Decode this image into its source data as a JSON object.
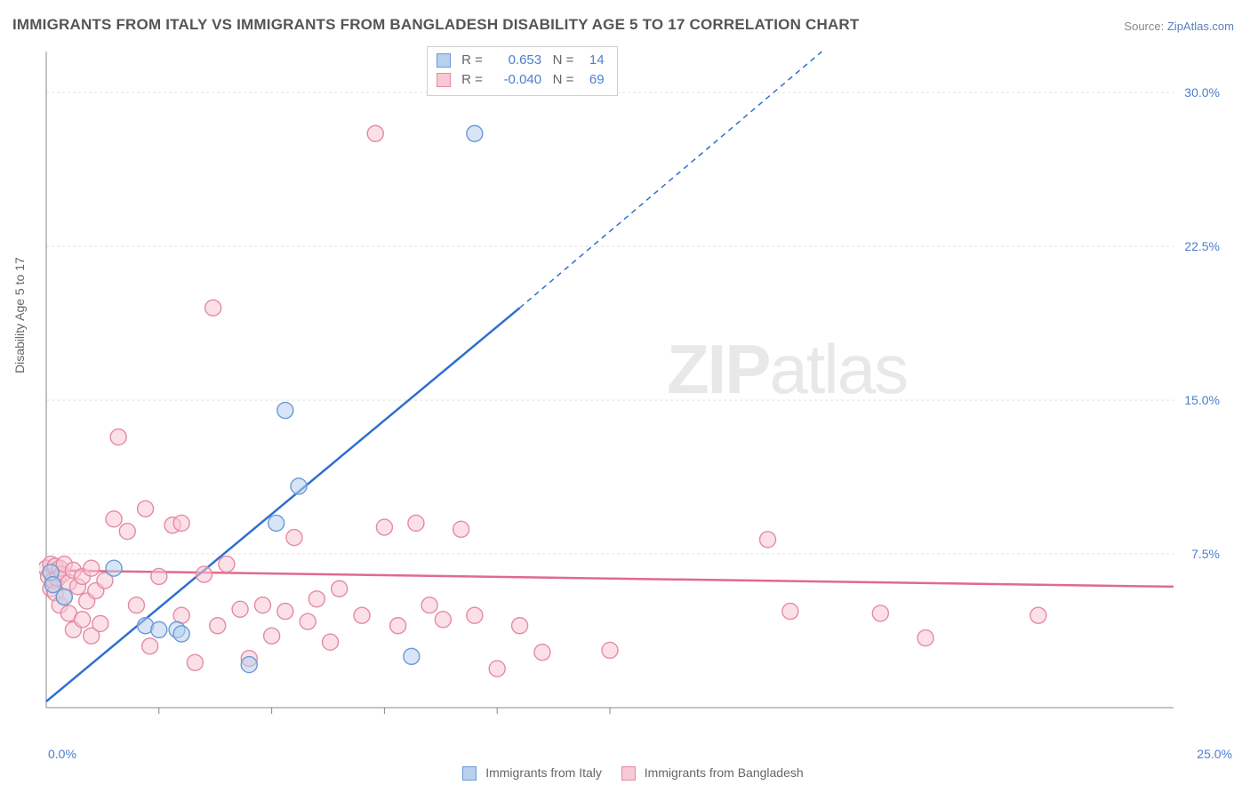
{
  "title": "IMMIGRANTS FROM ITALY VS IMMIGRANTS FROM BANGLADESH DISABILITY AGE 5 TO 17 CORRELATION CHART",
  "source_label": "Source:",
  "source_name": "ZipAtlas.com",
  "ylabel": "Disability Age 5 to 17",
  "watermark_a": "ZIP",
  "watermark_b": "atlas",
  "chart": {
    "type": "scatter-with-regression",
    "background_color": "#ffffff",
    "grid_color": "#e2e2e2",
    "axis_color": "#888888",
    "xlim": [
      0,
      25
    ],
    "ylim": [
      0,
      32
    ],
    "x_ticks_minor": [
      2.5,
      5,
      7.5,
      10,
      12.5
    ],
    "y_gridlines": [
      7.5,
      15,
      22.5,
      30
    ],
    "y_tick_labels": [
      "7.5%",
      "15.0%",
      "22.5%",
      "30.0%"
    ],
    "x_origin_label": "0.0%",
    "x_max_label": "25.0%",
    "axis_label_color": "#4a7fd0",
    "marker_radius": 9,
    "marker_stroke_width": 1.4,
    "line_width_solid": 2.5,
    "line_width_dash": 1.5,
    "series": [
      {
        "name": "Immigrants from Italy",
        "color_fill": "#b6d0ee",
        "color_stroke": "#6a9ad6",
        "line_color": "#2f6fd0",
        "R": "0.653",
        "N": "14",
        "regression": {
          "x1": 0,
          "y1": 0.3,
          "x2solid": 10.5,
          "y2solid": 19.5,
          "x2": 17.2,
          "y2": 32
        },
        "points": [
          [
            0.1,
            6.6
          ],
          [
            0.15,
            6.0
          ],
          [
            0.4,
            5.4
          ],
          [
            1.5,
            6.8
          ],
          [
            2.2,
            4.0
          ],
          [
            2.5,
            3.8
          ],
          [
            2.9,
            3.8
          ],
          [
            3.0,
            3.6
          ],
          [
            4.5,
            2.1
          ],
          [
            5.1,
            9.0
          ],
          [
            5.3,
            14.5
          ],
          [
            5.6,
            10.8
          ],
          [
            8.1,
            2.5
          ],
          [
            9.5,
            28.0
          ]
        ]
      },
      {
        "name": "Immigrants from Bangladesh",
        "color_fill": "#f7c9d4",
        "color_stroke": "#e48aa2",
        "line_color": "#e06b8c",
        "R": "-0.040",
        "N": "69",
        "regression": {
          "x1": 0,
          "y1": 6.7,
          "x2solid": 25,
          "y2solid": 5.9,
          "x2": 25,
          "y2": 5.9
        },
        "points": [
          [
            0.0,
            6.8
          ],
          [
            0.05,
            6.4
          ],
          [
            0.1,
            7.0
          ],
          [
            0.1,
            5.8
          ],
          [
            0.15,
            6.2
          ],
          [
            0.2,
            6.9
          ],
          [
            0.2,
            5.6
          ],
          [
            0.25,
            6.3
          ],
          [
            0.3,
            6.8
          ],
          [
            0.3,
            5.0
          ],
          [
            0.35,
            6.5
          ],
          [
            0.4,
            7.0
          ],
          [
            0.4,
            5.4
          ],
          [
            0.5,
            6.1
          ],
          [
            0.5,
            4.6
          ],
          [
            0.6,
            6.7
          ],
          [
            0.6,
            3.8
          ],
          [
            0.7,
            5.9
          ],
          [
            0.8,
            6.4
          ],
          [
            0.8,
            4.3
          ],
          [
            0.9,
            5.2
          ],
          [
            1.0,
            6.8
          ],
          [
            1.0,
            3.5
          ],
          [
            1.1,
            5.7
          ],
          [
            1.2,
            4.1
          ],
          [
            1.3,
            6.2
          ],
          [
            1.5,
            9.2
          ],
          [
            1.6,
            13.2
          ],
          [
            1.8,
            8.6
          ],
          [
            2.0,
            5.0
          ],
          [
            2.2,
            9.7
          ],
          [
            2.3,
            3.0
          ],
          [
            2.5,
            6.4
          ],
          [
            2.8,
            8.9
          ],
          [
            3.0,
            9.0
          ],
          [
            3.0,
            4.5
          ],
          [
            3.3,
            2.2
          ],
          [
            3.5,
            6.5
          ],
          [
            3.7,
            19.5
          ],
          [
            3.8,
            4.0
          ],
          [
            4.0,
            7.0
          ],
          [
            4.3,
            4.8
          ],
          [
            4.5,
            2.4
          ],
          [
            4.8,
            5.0
          ],
          [
            5.0,
            3.5
          ],
          [
            5.3,
            4.7
          ],
          [
            5.5,
            8.3
          ],
          [
            5.8,
            4.2
          ],
          [
            6.0,
            5.3
          ],
          [
            6.3,
            3.2
          ],
          [
            6.5,
            5.8
          ],
          [
            7.0,
            4.5
          ],
          [
            7.3,
            28.0
          ],
          [
            7.5,
            8.8
          ],
          [
            7.8,
            4.0
          ],
          [
            8.2,
            9.0
          ],
          [
            8.5,
            5.0
          ],
          [
            8.8,
            4.3
          ],
          [
            9.2,
            8.7
          ],
          [
            9.5,
            4.5
          ],
          [
            10.0,
            1.9
          ],
          [
            10.5,
            4.0
          ],
          [
            11.0,
            2.7
          ],
          [
            12.5,
            2.8
          ],
          [
            16.0,
            8.2
          ],
          [
            16.5,
            4.7
          ],
          [
            18.5,
            4.6
          ],
          [
            19.5,
            3.4
          ],
          [
            22.0,
            4.5
          ]
        ]
      }
    ]
  },
  "legend_bottom": [
    {
      "swatch_fill": "#b6d0ee",
      "swatch_stroke": "#6a9ad6",
      "label": "Immigrants from Italy"
    },
    {
      "swatch_fill": "#f7c9d4",
      "swatch_stroke": "#e48aa2",
      "label": "Immigrants from Bangladesh"
    }
  ]
}
